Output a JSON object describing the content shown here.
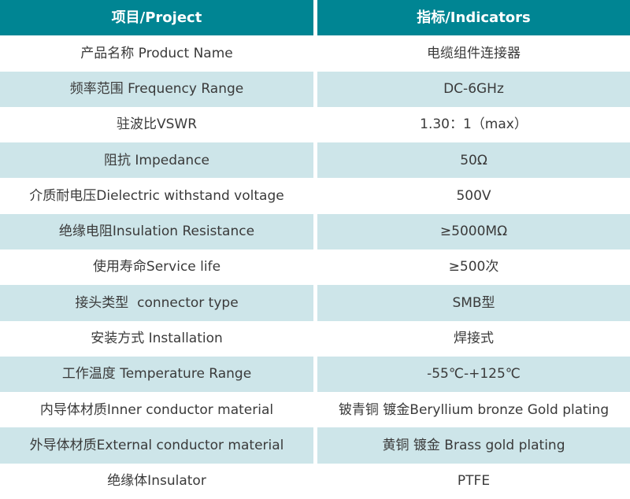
{
  "colors": {
    "header_bg": "#008593",
    "header_text": "#ffffff",
    "alt_row_bg": "#cde5e9",
    "row_bg": "#ffffff",
    "body_text": "#3a3a3a"
  },
  "table": {
    "header": {
      "project": "项目/Project",
      "indicators": "指标/Indicators"
    },
    "rows": [
      {
        "project": "产品名称 Product Name",
        "indicator": "电缆组件连接器"
      },
      {
        "project": "频率范围 Frequency Range",
        "indicator": "DC-6GHz"
      },
      {
        "project": "驻波比VSWR",
        "indicator": "1.30：1（max）"
      },
      {
        "project": "阻抗 Impedance",
        "indicator": "50Ω"
      },
      {
        "project": "介质耐电压Dielectric withstand voltage",
        "indicator": "500V"
      },
      {
        "project": "绝缘电阻Insulation Resistance",
        "indicator": "≥5000MΩ"
      },
      {
        "project": "使用寿命Service life",
        "indicator": "≥500次"
      },
      {
        "project": "接头类型  connector type",
        "indicator": "SMB型"
      },
      {
        "project": "安装方式 Installation",
        "indicator": "焊接式"
      },
      {
        "project": "工作温度 Temperature Range",
        "indicator": "-55℃-+125℃"
      },
      {
        "project": "内导体材质Inner conductor material",
        "indicator": "铍青铜 镀金Beryllium bronze Gold plating"
      },
      {
        "project": "外导体材质External conductor material",
        "indicator": "黄铜 镀金 Brass gold plating"
      },
      {
        "project": "绝缘体Insulator",
        "indicator": "PTFE"
      }
    ]
  }
}
